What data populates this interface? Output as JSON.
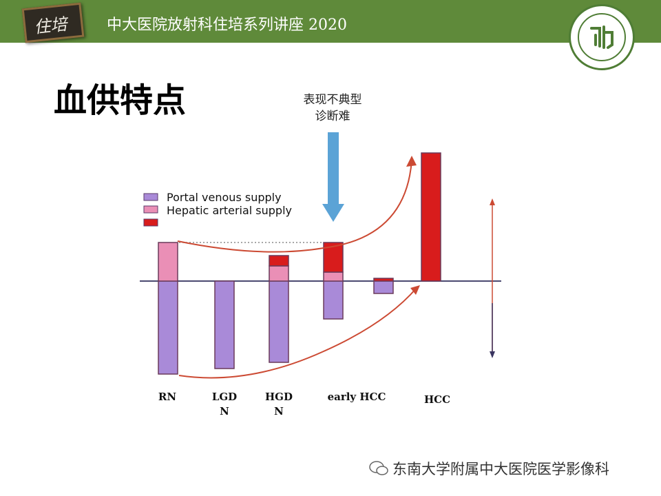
{
  "banner": {
    "logo_text": "住培",
    "title": "中大医院放射科住培系列讲座 2020"
  },
  "page_title": "血供特点",
  "annotation": {
    "line1": "表现不典型",
    "line2": "诊断难"
  },
  "legend": [
    {
      "label": "Portal venous supply",
      "color": "#a98ad8"
    },
    {
      "label": "Hepatic arterial supply",
      "color": "#ea8fb6"
    },
    {
      "label": "",
      "color": "#d81c1c"
    }
  ],
  "chart_data": {
    "type": "bar",
    "categories": [
      "RN",
      "LGD N",
      "HGD N",
      "early HCC",
      "HCC"
    ],
    "category_display": [
      "RN",
      "LGD\nN",
      "HGD\nN",
      "early HCC",
      "HCC"
    ],
    "series": [
      {
        "name": "Portal venous supply",
        "color": "#a98ad8",
        "values": [
          -135,
          -127,
          -118,
          -55,
          -18
        ]
      },
      {
        "name": "Hepatic arterial supply",
        "color": "#ea8fb6",
        "values": [
          56,
          0,
          22,
          13,
          0
        ]
      },
      {
        "name": "",
        "color": "#d81c1c",
        "values": [
          0,
          0,
          15,
          43,
          4
        ]
      }
    ],
    "extra_red_hcc": 186,
    "annotations": [
      "表现不典型",
      "诊断难"
    ]
  },
  "footer": {
    "text": "东南大学附属中大医院医学影像科"
  },
  "colors": {
    "banner": "#5f8a3a",
    "baseline": "#4a4870",
    "curve": "#cc4a33",
    "arrow_blue": "#5ba3d6"
  }
}
